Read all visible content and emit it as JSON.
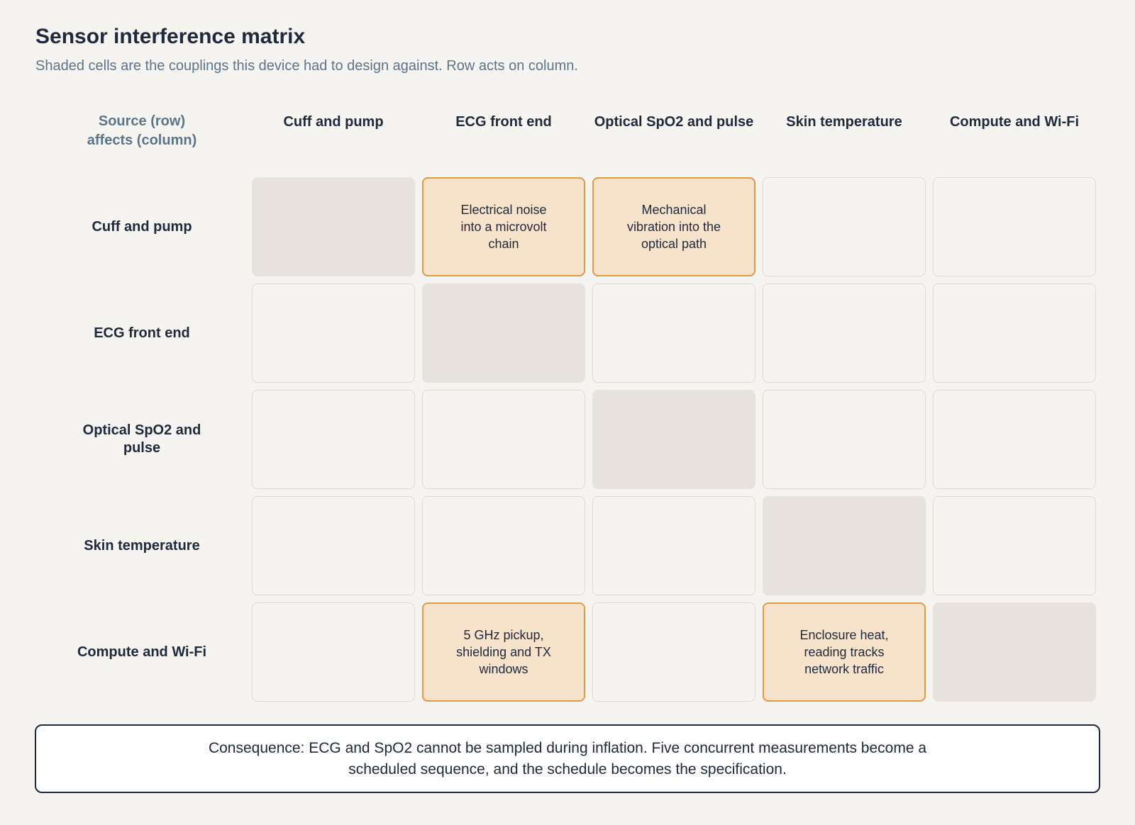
{
  "header": {
    "title": "Sensor interference matrix",
    "subtitle": "Shaded cells are the couplings this device had to design against. Row acts on column."
  },
  "matrix": {
    "corner_label": "Source (row)\naffects (column)",
    "columns": [
      "Cuff and pump",
      "ECG front end",
      "Optical SpO2 and pulse",
      "Skin temperature",
      "Compute and Wi-Fi"
    ],
    "rows": [
      "Cuff and pump",
      "ECG front end",
      "Optical SpO2 and pulse",
      "Skin temperature",
      "Compute and Wi-Fi"
    ],
    "couplings": [
      {
        "row": 0,
        "col": 1,
        "text": "Electrical noise into a microvolt chain"
      },
      {
        "row": 0,
        "col": 2,
        "text": "Mechanical vibration into the optical path"
      },
      {
        "row": 4,
        "col": 1,
        "text": "5 GHz pickup, shielding and TX windows"
      },
      {
        "row": 4,
        "col": 3,
        "text": "Enclosure heat, reading tracks network traffic"
      }
    ]
  },
  "consequence": {
    "text": "Consequence: ECG and SpO2 cannot be sampled during inflation. Five concurrent measurements become a scheduled sequence, and the schedule becomes the specification."
  },
  "colors": {
    "coupling_fill": "#f7e2cb",
    "coupling_border": "#e39a47",
    "diagonal_fill": "#e7e2dd",
    "empty_border": "#dcd9d5",
    "title_text": "#1e293b",
    "muted_text": "#5b7488"
  }
}
